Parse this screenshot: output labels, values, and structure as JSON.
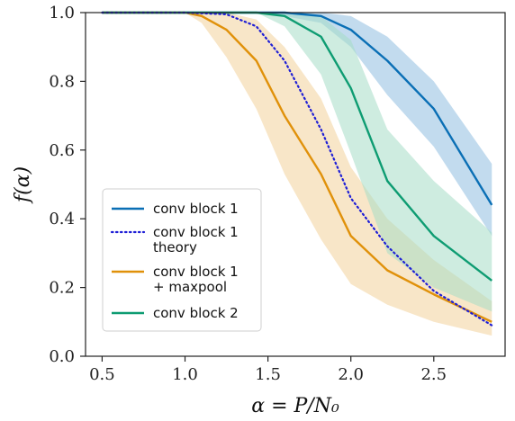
{
  "chart_data": {
    "type": "line",
    "title": "",
    "xlabel": "α = P/N₀",
    "ylabel": "f(α)",
    "xlim": [
      0.4,
      2.93
    ],
    "ylim": [
      0.0,
      1.0
    ],
    "xticks": [
      "0.5",
      "1.0",
      "1.5",
      "2.0",
      "2.5"
    ],
    "yticks": [
      "0.0",
      "0.2",
      "0.4",
      "0.6",
      "0.8",
      "1.0"
    ],
    "grid": false,
    "legend_position": "lower-left",
    "series": [
      {
        "name": "conv block 1",
        "style": "solid",
        "color": "#0a6fb5",
        "band_color": "#8fbde0",
        "x": [
          0.5,
          1.0,
          1.25,
          1.43,
          1.6,
          1.82,
          2.0,
          2.22,
          2.5,
          2.85
        ],
        "y": [
          1.0,
          1.0,
          1.0,
          1.0,
          1.0,
          0.99,
          0.95,
          0.86,
          0.72,
          0.44
        ],
        "lower": [
          1.0,
          1.0,
          1.0,
          1.0,
          0.99,
          0.97,
          0.9,
          0.76,
          0.61,
          0.35
        ],
        "upper": [
          1.0,
          1.0,
          1.0,
          1.0,
          1.0,
          1.0,
          0.99,
          0.93,
          0.8,
          0.56
        ]
      },
      {
        "name": "conv block 1\ntheory",
        "style": "dotted",
        "color": "#1f1fd6",
        "x": [
          0.5,
          1.0,
          1.25,
          1.43,
          1.6,
          1.82,
          2.0,
          2.22,
          2.5,
          2.85
        ],
        "y": [
          1.0,
          1.0,
          0.995,
          0.96,
          0.86,
          0.66,
          0.46,
          0.32,
          0.19,
          0.09
        ]
      },
      {
        "name": "conv block 1\n+ maxpool",
        "style": "solid",
        "color": "#e0910a",
        "band_color": "#f3d29a",
        "x": [
          0.5,
          1.0,
          1.1,
          1.25,
          1.43,
          1.6,
          1.82,
          2.0,
          2.22,
          2.5,
          2.85
        ],
        "y": [
          1.0,
          1.0,
          0.99,
          0.95,
          0.86,
          0.7,
          0.53,
          0.35,
          0.25,
          0.18,
          0.1
        ],
        "lower": [
          1.0,
          1.0,
          0.97,
          0.87,
          0.72,
          0.53,
          0.34,
          0.21,
          0.15,
          0.1,
          0.06
        ],
        "upper": [
          1.0,
          1.0,
          1.0,
          1.0,
          0.98,
          0.9,
          0.75,
          0.55,
          0.4,
          0.28,
          0.16
        ]
      },
      {
        "name": "conv block 2",
        "style": "solid",
        "color": "#0e9c72",
        "band_color": "#a6dcc6",
        "x": [
          0.5,
          1.0,
          1.25,
          1.43,
          1.6,
          1.82,
          2.0,
          2.22,
          2.5,
          2.85
        ],
        "y": [
          1.0,
          1.0,
          1.0,
          1.0,
          0.99,
          0.93,
          0.78,
          0.51,
          0.35,
          0.22
        ],
        "lower": [
          1.0,
          1.0,
          1.0,
          1.0,
          0.96,
          0.82,
          0.59,
          0.3,
          0.2,
          0.13
        ],
        "upper": [
          1.0,
          1.0,
          1.0,
          1.0,
          1.0,
          0.99,
          0.92,
          0.66,
          0.51,
          0.36
        ]
      }
    ]
  }
}
